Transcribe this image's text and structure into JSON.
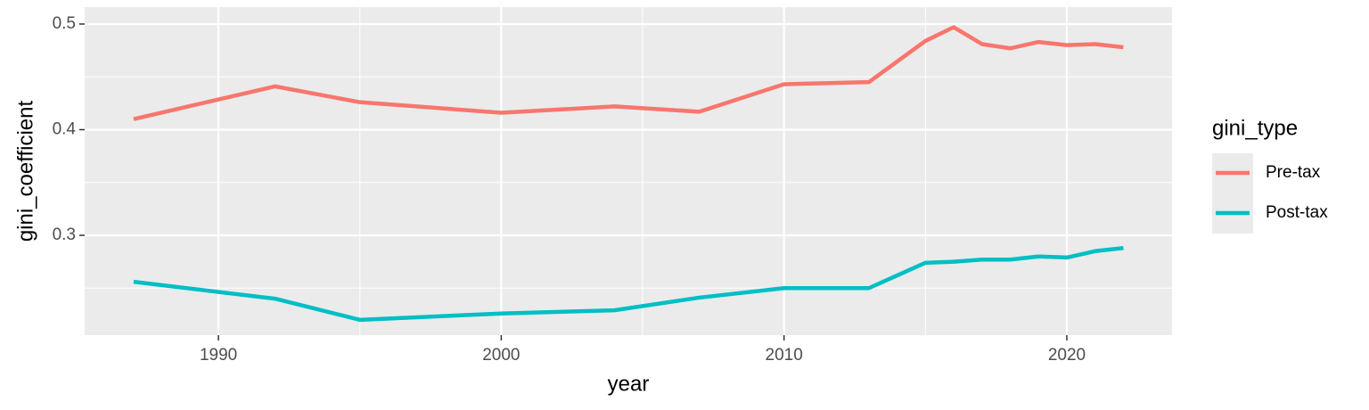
{
  "chart_data": {
    "type": "line",
    "x_label": "year",
    "y_label": "gini_coefficient",
    "x": [
      1987,
      1992,
      1995,
      2000,
      2004,
      2007,
      2010,
      2013,
      2015,
      2016,
      2017,
      2018,
      2019,
      2020,
      2021,
      2022
    ],
    "series": [
      {
        "name": "Pre-tax",
        "color": "#f8766d",
        "values": [
          0.41,
          0.441,
          0.426,
          0.416,
          0.422,
          0.417,
          0.443,
          0.445,
          0.484,
          0.497,
          0.481,
          0.477,
          0.483,
          0.48,
          0.481,
          0.478
        ]
      },
      {
        "name": "Post-tax",
        "color": "#00bfc4",
        "values": [
          0.256,
          0.24,
          0.22,
          0.226,
          0.229,
          0.241,
          0.25,
          0.25,
          0.274,
          0.275,
          0.277,
          0.277,
          0.28,
          0.279,
          0.285,
          0.288
        ]
      }
    ],
    "legend_title": "gini_type",
    "legend_position": "right",
    "xlim": [
      1985.27,
      2023.72
    ],
    "xticks": [
      1990,
      2000,
      2010,
      2020
    ],
    "xminorticks": [
      1995,
      2005,
      2015
    ],
    "ylim": [
      0.2055,
      0.516
    ],
    "yticks": [
      0.3,
      0.4,
      0.5
    ],
    "yminorticks": [
      0.25,
      0.35,
      0.45
    ],
    "grid": true
  }
}
